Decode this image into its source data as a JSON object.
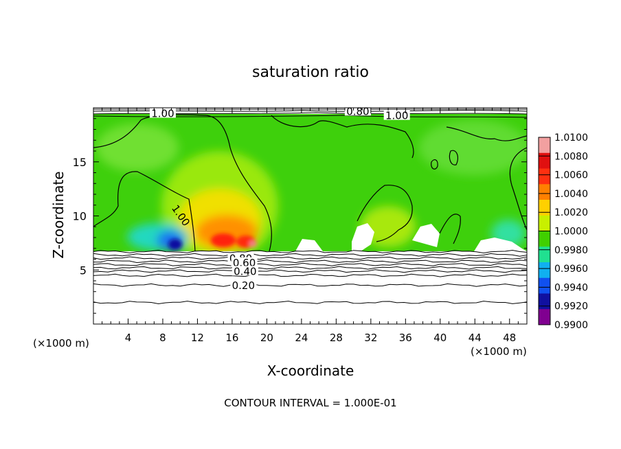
{
  "chart_data": {
    "type": "heatmap",
    "title": "saturation ratio",
    "xlabel": "X-coordinate",
    "ylabel": "Z-coordinate",
    "x_unit_label": "(×1000 m)",
    "x_unit_label_right": "(×1000 m)",
    "footer": "CONTOUR INTERVAL = 1.000E-01",
    "xlim": [
      0,
      50
    ],
    "ylim": [
      0,
      20
    ],
    "x_ticks": [
      4,
      8,
      12,
      16,
      20,
      24,
      28,
      32,
      36,
      40,
      44,
      48
    ],
    "x_tick_labels": [
      "4",
      "8",
      "12",
      "16",
      "20",
      "24",
      "28",
      "32",
      "36",
      "40",
      "44",
      "48"
    ],
    "y_ticks": [
      5,
      10,
      15
    ],
    "y_tick_labels": [
      "5",
      "10",
      "15"
    ],
    "colorbar": {
      "labels": [
        "1.0100",
        "1.0080",
        "1.0060",
        "1.0040",
        "1.0020",
        "1.0000",
        "0.9980",
        "0.9960",
        "0.9940",
        "0.9920",
        "0.9900"
      ],
      "colors": [
        "#f2a0a0",
        "#e01010",
        "#ff3010",
        "#ff8000",
        "#ffd000",
        "#c8f000",
        "#40d000",
        "#20e090",
        "#10b0f0",
        "#1050f0",
        "#1010a0",
        "#800090"
      ]
    },
    "contour_labels": [
      {
        "text": "1.00",
        "x": 8,
        "y": 19.4
      },
      {
        "text": "0.80",
        "x": 30.5,
        "y": 19.6
      },
      {
        "text": "1.00",
        "x": 35,
        "y": 19.2
      },
      {
        "text": "1.00",
        "x": 10,
        "y": 10
      },
      {
        "text": "0.80",
        "x": 17,
        "y": 6.0
      },
      {
        "text": "0.60",
        "x": 17.4,
        "y": 5.6
      },
      {
        "text": "0.40",
        "x": 17.5,
        "y": 4.8
      },
      {
        "text": "0.20",
        "x": 17.3,
        "y": 3.5
      }
    ],
    "lower_contour_levels": [
      6.7,
      6.4,
      6.1,
      5.8,
      5.5,
      5.2,
      4.9,
      4.5,
      3.6,
      2.0
    ]
  }
}
